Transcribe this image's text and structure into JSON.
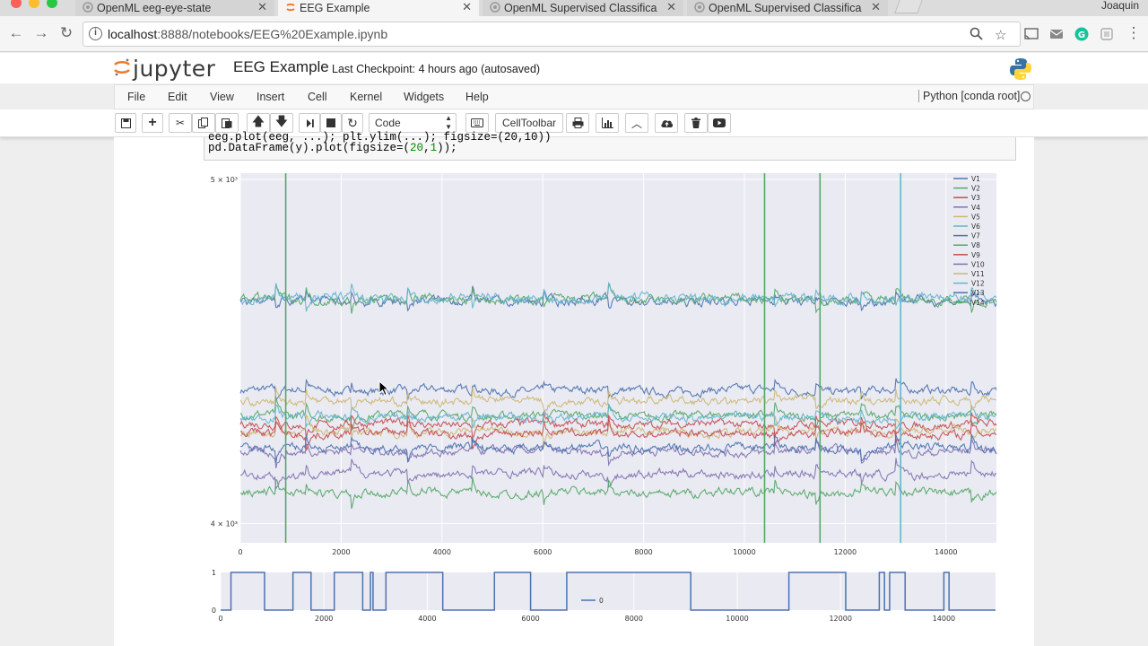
{
  "browser": {
    "tabs": [
      {
        "title": "OpenML eeg-eye-state",
        "active": false
      },
      {
        "title": "EEG Example",
        "active": true
      },
      {
        "title": "OpenML Supervised Classifica",
        "active": false
      },
      {
        "title": "OpenML Supervised Classifica",
        "active": false
      }
    ],
    "profile_name": "Joaquin",
    "url_host": "localhost",
    "url_rest": ":8888/notebooks/EEG%20Example.ipynb"
  },
  "jupyter": {
    "logo_text": "jupyter",
    "notebook_title": "EEG Example",
    "checkpoint": "Last Checkpoint: 4 hours ago (autosaved)",
    "menu": [
      "File",
      "Edit",
      "View",
      "Insert",
      "Cell",
      "Kernel",
      "Widgets",
      "Help"
    ],
    "kernel": "Python [conda root]",
    "cell_type": "Code",
    "celltoolbar_label": "CellToolbar"
  },
  "code": {
    "partial_line": "eeg.plot(eeg, ...); plt.ylim(...); figsize=(20,10))",
    "line_prefix": "pd.DataFrame(y).plot(figsize=(",
    "line_arg1": "20",
    "line_sep": ",",
    "line_arg2": "1",
    "line_suffix": "));"
  },
  "chart_data": [
    {
      "type": "line",
      "x_ticks": [
        0,
        2000,
        4000,
        6000,
        8000,
        10000,
        12000,
        14000
      ],
      "xlim": [
        0,
        15000
      ],
      "y_scale": "log",
      "y_tick_labels": [
        "5 × 10³",
        "4 × 10³"
      ],
      "ylim": [
        3950,
        5020
      ],
      "grid": true,
      "legend_position": "top-right",
      "series": [
        {
          "name": "V1",
          "color": "#4c72b0",
          "base": 4360
        },
        {
          "name": "V2",
          "color": "#55a868",
          "base": 4290
        },
        {
          "name": "V3",
          "color": "#c44e52",
          "base": 4265
        },
        {
          "name": "V4",
          "color": "#8172b2",
          "base": 4190
        },
        {
          "name": "V5",
          "color": "#ccb974",
          "base": 4245
        },
        {
          "name": "V6",
          "color": "#64b5cd",
          "base": 4285
        },
        {
          "name": "V7",
          "color": "#4c72b0",
          "base": 4620
        },
        {
          "name": "V8",
          "color": "#55a868",
          "base": 4625
        },
        {
          "name": "V9",
          "color": "#c44e52",
          "base": 4240
        },
        {
          "name": "V10",
          "color": "#8172b2",
          "base": 4130
        },
        {
          "name": "V11",
          "color": "#ccb974",
          "base": 4330
        },
        {
          "name": "V12",
          "color": "#64b5cd",
          "base": 4630
        },
        {
          "name": "V13",
          "color": "#4c72b0",
          "base": 4200
        },
        {
          "name": "V14",
          "color": "#55a868",
          "base": 4080
        }
      ]
    },
    {
      "type": "line",
      "x_ticks": [
        0,
        2000,
        4000,
        6000,
        8000,
        10000,
        12000,
        14000
      ],
      "xlim": [
        0,
        15000
      ],
      "y_ticks": [
        0,
        1
      ],
      "ylim": [
        0,
        1
      ],
      "legend_position": "bottom-center",
      "series": [
        {
          "name": "0",
          "color": "#4c72b0",
          "step_edges": [
            0,
            200,
            850,
            1400,
            1750,
            2200,
            2750,
            2900,
            2950,
            3200,
            4300,
            5300,
            6000,
            6700,
            9100,
            11000,
            12100,
            12750,
            12850,
            12950,
            13250,
            14000,
            14100,
            15000
          ],
          "start_value": 0
        }
      ]
    }
  ]
}
